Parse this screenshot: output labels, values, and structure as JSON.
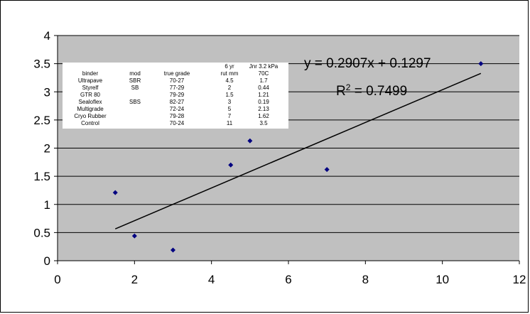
{
  "chart_data": {
    "type": "scatter",
    "title": "",
    "xlabel": "",
    "ylabel": "",
    "xlim": [
      0,
      12
    ],
    "ylim": [
      0,
      4
    ],
    "x_ticks": [
      0,
      2,
      4,
      6,
      8,
      10,
      12
    ],
    "y_ticks": [
      0,
      0.5,
      1,
      1.5,
      2,
      2.5,
      3,
      3.5,
      4
    ],
    "y_tick_labels": [
      "0",
      "0.5",
      "1",
      "1.5",
      "2",
      "2.5",
      "3",
      "3.5",
      "4"
    ],
    "grid": "horizontal",
    "plot_background": "#c0c0c0",
    "marker_color": "#000080",
    "points": [
      {
        "x": 4.5,
        "y": 1.7
      },
      {
        "x": 2,
        "y": 0.44
      },
      {
        "x": 1.5,
        "y": 1.21
      },
      {
        "x": 3,
        "y": 0.19
      },
      {
        "x": 5,
        "y": 2.13
      },
      {
        "x": 7,
        "y": 1.62
      },
      {
        "x": 11,
        "y": 3.5
      }
    ],
    "trendline": {
      "slope": 0.2907,
      "intercept": 0.1297,
      "x_range": [
        1.5,
        11
      ],
      "equation": "y = 0.2907x + 0.1297",
      "r2_prefix": "R",
      "r2_sup": "2",
      "r2_value": " = 0.7499"
    },
    "table": {
      "headers": [
        [
          "binder",
          "",
          ""
        ],
        [
          "mod",
          "",
          ""
        ],
        [
          "true grade",
          "",
          ""
        ],
        [
          "rut mm",
          "6 yr",
          ""
        ],
        [
          "70C",
          "Jnr 3.2 kPa",
          ""
        ]
      ],
      "rows": [
        [
          "Ultrapave",
          "SBR",
          "70-27",
          "4.5",
          "1.7"
        ],
        [
          "Styrelf",
          "SB",
          "77-29",
          "2",
          "0.44"
        ],
        [
          "GTR 80",
          "",
          "79-29",
          "1.5",
          "1.21"
        ],
        [
          "Sealoflex",
          "SBS",
          "82-27",
          "3",
          "0.19"
        ],
        [
          "Multigrade",
          "",
          "72-24",
          "5",
          "2.13"
        ],
        [
          "Cryo Rubber",
          "",
          "79-28",
          "7",
          "1.62"
        ],
        [
          "Control",
          "",
          "70-24",
          "11",
          "3.5"
        ]
      ]
    }
  }
}
